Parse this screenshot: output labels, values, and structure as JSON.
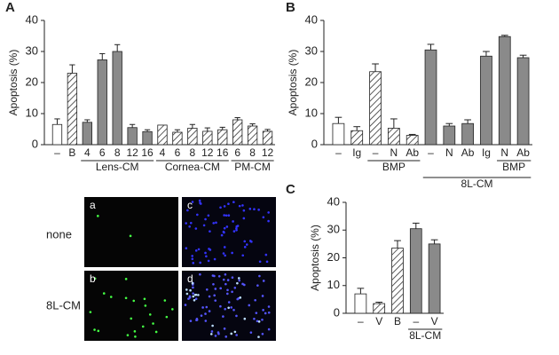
{
  "panel_labels": [
    "A",
    "B",
    "C"
  ],
  "chart_data": [
    {
      "type": "bar",
      "ylabel": "Apoptosis (%)",
      "categories": [
        "–",
        "B",
        "4",
        "6",
        "8",
        "12",
        "16",
        "4",
        "6",
        "8",
        "12",
        "16",
        "6",
        "8",
        "12"
      ],
      "values": [
        6.5,
        23,
        7.2,
        27.3,
        30,
        5.5,
        4.2,
        6.3,
        4,
        5.3,
        4.3,
        4.8,
        8,
        6,
        4.3
      ],
      "errors": [
        1.8,
        2.7,
        0.8,
        2,
        2.2,
        1,
        0.6,
        0,
        0.8,
        1.2,
        1.1,
        0.8,
        0.7,
        0.7,
        0.6
      ],
      "fills": [
        "open",
        "hatched",
        "solid",
        "solid",
        "solid",
        "solid",
        "solid",
        "hatched",
        "hatched",
        "hatched",
        "hatched",
        "hatched",
        "hatched",
        "hatched",
        "hatched"
      ],
      "groups": [
        {
          "label": "Lens-CM",
          "from": 2,
          "to": 6
        },
        {
          "label": "Cornea-CM",
          "from": 7,
          "to": 11
        },
        {
          "label": "PM-CM",
          "from": 12,
          "to": 14
        }
      ],
      "ylim": [
        0,
        40
      ],
      "yticks": [
        0,
        10,
        20,
        30,
        40
      ]
    },
    {
      "type": "bar",
      "ylabel": "Apoptosis (%)",
      "categories": [
        "–",
        "Ig",
        "–",
        "N",
        "Ab",
        "–",
        "N",
        "Ab",
        "Ig",
        "N",
        "Ab"
      ],
      "values": [
        6.8,
        4.5,
        23.5,
        5.3,
        3,
        30.5,
        6,
        6.8,
        28.5,
        34.8,
        28
      ],
      "errors": [
        2,
        1.3,
        2.5,
        3,
        0.3,
        1.8,
        0.8,
        1.2,
        1.5,
        0.4,
        0.8
      ],
      "fills": [
        "open",
        "hatched",
        "hatched",
        "hatched",
        "hatched",
        "solid",
        "solid",
        "solid",
        "solid",
        "solid",
        "solid"
      ],
      "groups": [
        {
          "label": "BMP",
          "from": 2,
          "to": 4
        },
        {
          "label": "BMP",
          "from": 9,
          "to": 10
        },
        {
          "label": "8L-CM",
          "from": 5,
          "to": 10
        }
      ],
      "ylim": [
        0,
        40
      ],
      "yticks": [
        0,
        10,
        20,
        30,
        40
      ]
    },
    {
      "type": "bar",
      "ylabel": "Apoptosis (%)",
      "categories": [
        "–",
        "V",
        "B",
        "–",
        "V"
      ],
      "values": [
        7,
        3.5,
        23.5,
        30.5,
        25
      ],
      "errors": [
        2,
        0.5,
        2.7,
        2,
        1.5
      ],
      "fills": [
        "open",
        "hatched",
        "hatched",
        "solid",
        "solid"
      ],
      "groups": [
        {
          "label": "8L-CM",
          "from": 3,
          "to": 4
        }
      ],
      "ylim": [
        0,
        40
      ],
      "yticks": [
        0,
        10,
        20,
        30,
        40
      ]
    }
  ],
  "micrographs": {
    "rows": [
      "none",
      "8L-CM"
    ],
    "panels": [
      "a",
      "b",
      "c",
      "d"
    ]
  }
}
